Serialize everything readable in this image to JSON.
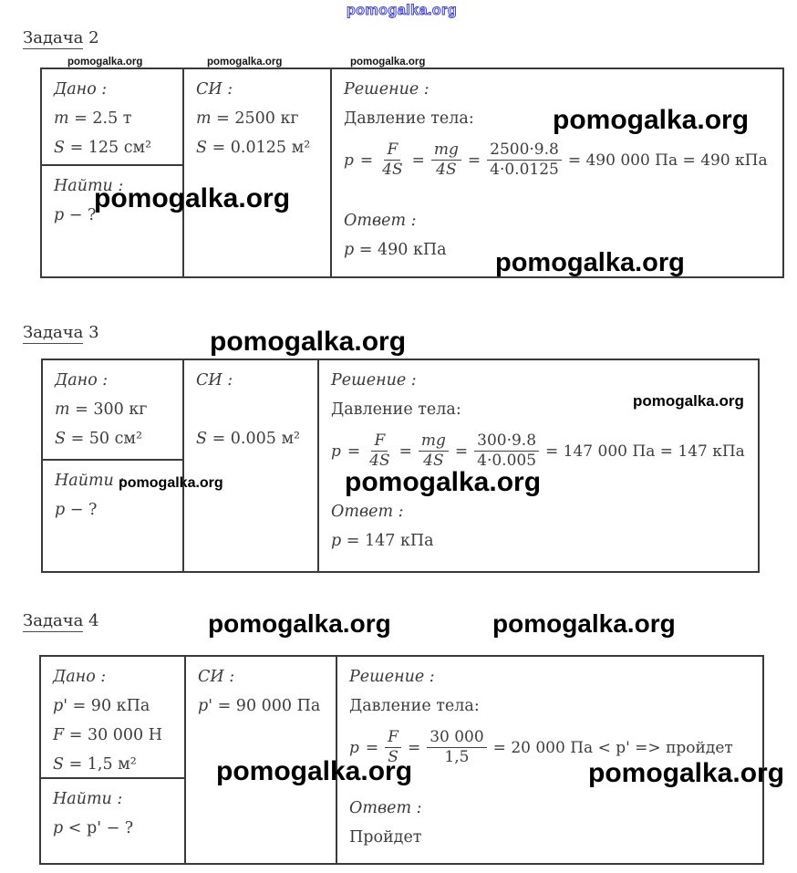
{
  "watermark": {
    "text": "pomogalka.org"
  },
  "sym": {
    "eq": "="
  },
  "problems": [
    {
      "title_word": "Задача",
      "title_num": "2",
      "given_label": "Дано :",
      "given_lines": [
        "m = 2.5 т",
        "S = 125 см²"
      ],
      "find_label": "Найти :",
      "find_line": "p − ?",
      "si_label": "СИ :",
      "si_lines": [
        "m = 2500 кг",
        "S = 0.0125 м²"
      ],
      "sol_label": "Решение :",
      "sol_intro": "Давление тела:",
      "sol_lhs": "p",
      "fracs": {
        "f1n": "F",
        "f1d": "4S",
        "f2n": "mg",
        "f2d": "4S",
        "f3n": "2500·9.8",
        "f3d": "4·0.0125"
      },
      "sol_result": "= 490 000 Па = 490 кПа",
      "answer_label": "Ответ :",
      "answer_line": "p = 490 кПа"
    },
    {
      "title_word": "Задача",
      "title_num": "3",
      "given_label": "Дано :",
      "given_lines": [
        "m = 300 кг",
        "S = 50 см²"
      ],
      "find_label": "Найти :",
      "find_line": "p − ?",
      "si_label": "СИ :",
      "si_lines": [
        "S = 0.005 м²"
      ],
      "sol_label": "Решение :",
      "sol_intro": "Давление тела:",
      "sol_lhs": "p",
      "fracs": {
        "f1n": "F",
        "f1d": "4S",
        "f2n": "mg",
        "f2d": "4S",
        "f3n": "300·9.8",
        "f3d": "4·0.005"
      },
      "sol_result": "= 147 000 Па = 147 кПа",
      "answer_label": "Ответ :",
      "answer_line": "p = 147 кПа"
    },
    {
      "title_word": "Задача",
      "title_num": "4",
      "given_label": "Дано :",
      "given_lines": [
        "p' = 90 кПа",
        "F = 30 000 Н",
        "S = 1,5 м²"
      ],
      "find_label": "Найти :",
      "find_line": "p < p' − ?",
      "si_label": "СИ :",
      "si_lines": [
        "p' = 90 000 Па"
      ],
      "sol_label": "Решение :",
      "sol_intro": "Давление тела:",
      "sol_lhs": "p",
      "fracs": {
        "f1n": "F",
        "f1d": "S",
        "f2n": "30 000",
        "f2d": "1,5"
      },
      "sol_result": "= 20 000 Па < p' => пройдет",
      "answer_label": "Ответ :",
      "answer_line": "Пройдет"
    }
  ]
}
